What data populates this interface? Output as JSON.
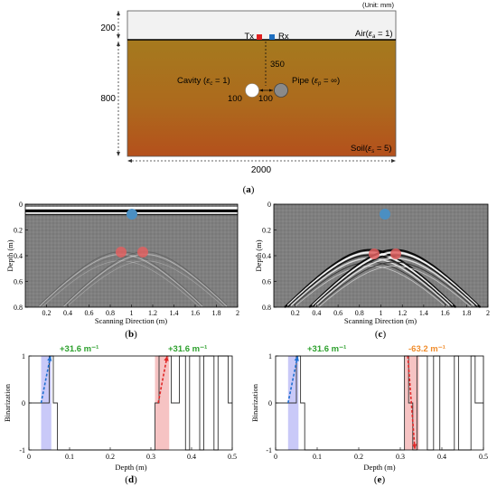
{
  "panel_a": {
    "unit_note": "(Unit: mm)",
    "dim_air": "200",
    "dim_soil": "800",
    "dim_width": "2000",
    "tx_label": "Tx",
    "rx_label": "Rx",
    "air_label": "Air(",
    "air_eps": "ε",
    "air_sub": "a",
    "air_tail": " = 1)",
    "soil_label": "Soil(",
    "soil_eps": "ε",
    "soil_sub": "s",
    "soil_tail": " = 5)",
    "cavity_label": "Cavity (",
    "cavity_eps": "ε",
    "cavity_sub": "c",
    "cavity_tail": " = 1)",
    "pipe_label": "Pipe (",
    "pipe_eps": "ε",
    "pipe_sub": "p",
    "pipe_tail": " = ∞)",
    "depth_350": "350",
    "dia_cavity": "100",
    "dia_pipe": "100",
    "caption": "(a)",
    "colors": {
      "air": "#f2f2f2",
      "soil_top": "#a8781d",
      "soil_bottom": "#b5501c",
      "tx": "#e02020",
      "rx": "#1f6fc0"
    }
  },
  "panel_b": {
    "caption": "(b)",
    "ylabel": "Depth (m)",
    "xlabel": "Scanning Direction (m)",
    "xticks": [
      "0.2",
      "0.4",
      "0.6",
      "0.8",
      "1",
      "1.2",
      "1.4",
      "1.6",
      "1.8",
      "2"
    ],
    "yticks": [
      "0",
      "0.2",
      "0.4",
      "0.6",
      "0.8"
    ]
  },
  "panel_c": {
    "caption": "(c)",
    "ylabel": "Depth (m)",
    "xlabel": "Scanning Direction (m)",
    "xticks": [
      "0.2",
      "0.4",
      "0.6",
      "0.8",
      "1",
      "1.2",
      "1.4",
      "1.6",
      "1.8",
      "2"
    ],
    "yticks": [
      "0",
      "0.2",
      "0.4",
      "0.6",
      "0.8"
    ]
  },
  "panel_d": {
    "caption": "(d)",
    "ylabel": "Binarization",
    "xlabel": "Depth (m)",
    "xticks": [
      "0",
      "0.1",
      "0.2",
      "0.3",
      "0.4",
      "0.5"
    ],
    "yticks": [
      "1",
      "0",
      "-1"
    ],
    "slope_left": "+31.6 m⁻¹",
    "slope_right": "+31.6 m⁻¹",
    "colors": {
      "slope_pos": "#2ca02c",
      "blue_band": "#b7b7f5",
      "red_band": "#f5b8b8"
    }
  },
  "panel_e": {
    "caption": "(e)",
    "ylabel": "Binarization",
    "xlabel": "Depth (m)",
    "xticks": [
      "0",
      "0.1",
      "0.2",
      "0.3",
      "0.4",
      "0.5"
    ],
    "yticks": [
      "1",
      "0",
      "-1"
    ],
    "slope_left": "+31.6 m⁻¹",
    "slope_right": "-63.2 m⁻¹",
    "colors": {
      "slope_pos": "#2ca02c",
      "slope_neg": "#f08c2c",
      "blue_band": "#b7b7f5",
      "red_band": "#f5b8b8"
    }
  },
  "chart_data": [
    {
      "type": "line",
      "title": "",
      "xlabel": "Depth (m)",
      "ylabel": "Binarization",
      "xlim": [
        0,
        0.5
      ],
      "ylim": [
        -1,
        1
      ],
      "series": [
        {
          "x": [
            0,
            0.03,
            0.03,
            0.05,
            0.05,
            0.06,
            0.06,
            0.07,
            0.07,
            0.31,
            0.31,
            0.32,
            0.32,
            0.35,
            0.35,
            0.37,
            0.37,
            0.385,
            0.385,
            0.395,
            0.395,
            0.42,
            0.42,
            0.43,
            0.43,
            0.455,
            0.455,
            0.465,
            0.465,
            0.49,
            0.49,
            0.5
          ],
          "values": [
            0,
            0,
            0,
            0,
            1,
            1,
            0,
            0,
            -1,
            -1,
            0,
            0,
            1,
            1,
            0,
            0,
            1,
            1,
            -1,
            -1,
            1,
            1,
            -1,
            -1,
            1,
            1,
            -1,
            -1,
            1,
            1,
            0,
            0
          ]
        }
      ]
    },
    {
      "type": "line",
      "title": "",
      "xlabel": "Depth (m)",
      "ylabel": "Binarization",
      "xlim": [
        0,
        0.5
      ],
      "ylim": [
        -1,
        1
      ],
      "series": [
        {
          "x": [
            0,
            0.03,
            0.03,
            0.05,
            0.05,
            0.06,
            0.06,
            0.07,
            0.07,
            0.31,
            0.31,
            0.32,
            0.32,
            0.33,
            0.33,
            0.34,
            0.34,
            0.365,
            0.365,
            0.38,
            0.38,
            0.395,
            0.395,
            0.43,
            0.43,
            0.44,
            0.44,
            0.47,
            0.47,
            0.48,
            0.48,
            0.5
          ],
          "values": [
            0,
            0,
            0,
            0,
            1,
            1,
            0,
            0,
            -1,
            -1,
            1,
            1,
            0,
            0,
            -1,
            -1,
            1,
            1,
            -1,
            -1,
            1,
            1,
            -1,
            -1,
            1,
            1,
            -1,
            -1,
            1,
            1,
            0,
            0
          ]
        }
      ]
    }
  ]
}
